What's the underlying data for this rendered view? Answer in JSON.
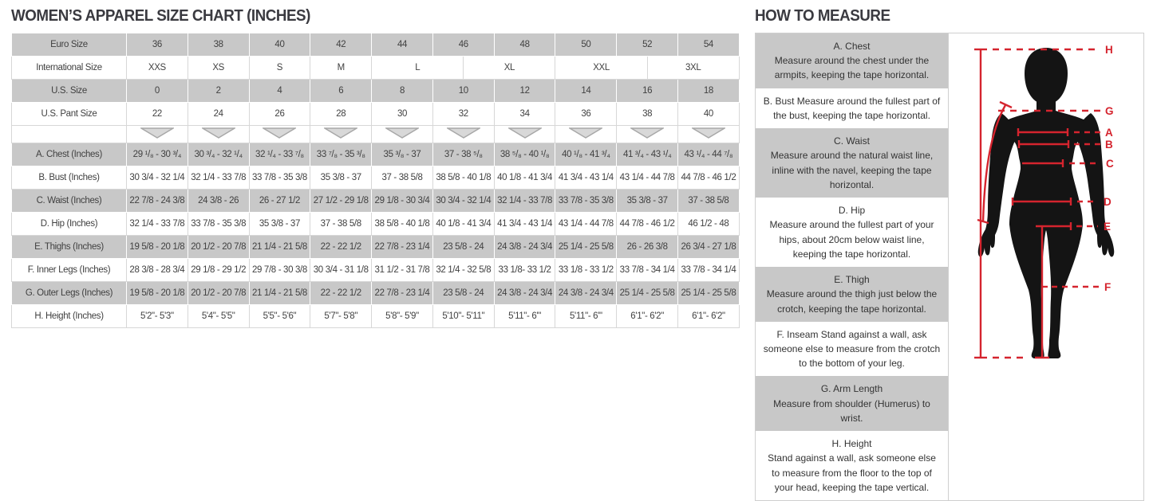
{
  "titles": {
    "left": "WOMEN’S APPAREL SIZE CHART (INCHES)",
    "right": "HOW TO MEASURE"
  },
  "size_table": {
    "header_rows": [
      {
        "label": "Euro Size",
        "values": [
          "36",
          "38",
          "40",
          "42",
          "44",
          "46",
          "48",
          "50",
          "52",
          "54"
        ],
        "spans": [
          2,
          2,
          2,
          2,
          2,
          2,
          2,
          2,
          2,
          2
        ]
      },
      {
        "label": "International Size",
        "values": [
          "XXS",
          "XS",
          "S",
          "M",
          "L",
          "XL",
          "XXL",
          "3XL"
        ],
        "spans": [
          2,
          2,
          2,
          2,
          3,
          3,
          3,
          3
        ]
      },
      {
        "label": "U.S. Size",
        "values": [
          "0",
          "2",
          "4",
          "6",
          "8",
          "10",
          "12",
          "14",
          "16",
          "18"
        ],
        "spans": [
          2,
          2,
          2,
          2,
          2,
          2,
          2,
          2,
          2,
          2
        ]
      },
      {
        "label": "U.S. Pant Size",
        "values": [
          "22",
          "24",
          "26",
          "28",
          "30",
          "32",
          "34",
          "36",
          "38",
          "40"
        ],
        "spans": [
          2,
          2,
          2,
          2,
          2,
          2,
          2,
          2,
          2,
          2
        ]
      }
    ],
    "measurement_rows": [
      {
        "label": "A. Chest (Inches)",
        "values": [
          "29 ¹/₈ - 30 ³/₄",
          "30 ³/₄ - 32 ¹/₄",
          "32 ¹/₄ - 33 ⁷/₈",
          "33 ⁷/₈ - 35 ³/₈",
          "35 ³/₈ - 37",
          "37 - 38 ⁵/₈",
          "38 ⁵/₈ - 40 ¹/₈",
          "40 ¹/₈ - 41 ³/₄",
          "41 ³/₄ - 43 ¹/₄",
          "43 ¹/₄ - 44 ⁷/₈"
        ]
      },
      {
        "label": "B. Bust (Inches)",
        "values": [
          "30 3/4 - 32 1/4",
          "32 1/4 - 33 7/8",
          "33 7/8 - 35 3/8",
          "35 3/8 - 37",
          "37 - 38 5/8",
          "38 5/8 - 40 1/8",
          "40 1/8 - 41 3/4",
          "41 3/4 - 43 1/4",
          "43 1/4 - 44 7/8",
          "44 7/8 - 46 1/2"
        ]
      },
      {
        "label": "C. Waist (Inches)",
        "values": [
          "22 7/8 - 24 3/8",
          "24 3/8 - 26",
          "26 - 27 1/2",
          "27 1/2 - 29 1/8",
          "29 1/8 - 30 3/4",
          "30 3/4 - 32 1/4",
          "32 1/4 - 33 7/8",
          "33 7/8 - 35 3/8",
          "35 3/8 - 37",
          "37 - 38 5/8"
        ]
      },
      {
        "label": "D. Hip (Inches)",
        "values": [
          "32 1/4 - 33 7/8",
          "33 7/8 - 35 3/8",
          "35 3/8 - 37",
          "37 - 38 5/8",
          "38 5/8 - 40 1/8",
          "40 1/8 - 41 3/4",
          "41 3/4 - 43 1/4",
          "43 1/4 - 44 7/8",
          "44 7/8 - 46 1/2",
          "46 1/2 - 48"
        ]
      },
      {
        "label": "E. Thighs (Inches)",
        "values": [
          "19 5/8 - 20 1/8",
          "20 1/2 - 20 7/8",
          "21 1/4 - 21 5/8",
          "22 - 22 1/2",
          "22 7/8 - 23 1/4",
          "23 5/8 - 24",
          "24 3/8 - 24 3/4",
          "25 1/4 - 25 5/8",
          "26 - 26 3/8",
          "26 3/4 - 27 1/8"
        ]
      },
      {
        "label": "F. Inner Legs (Inches)",
        "values": [
          "28 3/8 - 28 3/4",
          "29 1/8 - 29 1/2",
          "29 7/8 - 30 3/8",
          "30 3/4 - 31 1/8",
          "31 1/2 - 31 7/8",
          "32 1/4 - 32 5/8",
          "33 1/8- 33 1/2",
          "33 1/8 - 33 1/2",
          "33 7/8 - 34 1/4",
          "33 7/8 - 34 1/4"
        ]
      },
      {
        "label": "G. Outer Legs (Inches)",
        "values": [
          "19 5/8 - 20 1/8",
          "20 1/2 - 20 7/8",
          "21 1/4 - 21 5/8",
          "22 - 22 1/2",
          "22 7/8 - 23 1/4",
          "23 5/8 - 24",
          "24 3/8 - 24 3/4",
          "24 3/8 - 24 3/4",
          "25 1/4 - 25 5/8",
          "25 1/4 - 25 5/8"
        ]
      },
      {
        "label": "H. Height (Inches)",
        "values": [
          "5'2\"- 5'3\"",
          "5'4\"- 5'5\"",
          "5'5\"- 5'6\"",
          "5'7\"- 5'8\"",
          "5'8\"- 5'9\"",
          "5'10\"- 5'11\"",
          "5'11\"- 6'\"",
          "5'11\"- 6'\"",
          "6'1\"- 6'2\"",
          "6'1\"- 6'2\""
        ]
      }
    ]
  },
  "measure_guide": {
    "sections": [
      {
        "title": "A. Chest",
        "text": "Measure around the chest under the armpits, keeping the tape horizontal."
      },
      {
        "title": "",
        "text": "B. Bust Measure around the fullest part of the bust, keeping the tape horizontal."
      },
      {
        "title": "C. Waist",
        "text": "Measure around the natural waist line, inline with the navel, keeping the tape horizontal."
      },
      {
        "title": "D. Hip",
        "text": "Measure around the fullest part of your hips, about 20cm below waist line, keeping the tape horizontal."
      },
      {
        "title": "E. Thigh",
        "text": "Measure around the thigh just below the crotch, keeping the tape horizontal."
      },
      {
        "title": "",
        "text": "F. Inseam Stand against a wall, ask someone else to measure from the crotch to the bottom of your leg."
      },
      {
        "title": "G. Arm Length",
        "text": "Measure from shoulder (Humerus) to wrist."
      },
      {
        "title": "H. Height",
        "text": "Stand against a wall, ask someone else to measure from the floor to the top of your head, keeping the tape vertical."
      }
    ]
  },
  "figure": {
    "labels": [
      "H",
      "G",
      "A",
      "B",
      "C",
      "D",
      "E",
      "F"
    ],
    "line_color": "#d5242e",
    "silhouette_color": "#141414"
  },
  "colors": {
    "row_gray": "#c8c8c8",
    "text": "#414141",
    "arrow_fill": "#d8d8d8",
    "arrow_stroke": "#a8a8a8"
  }
}
